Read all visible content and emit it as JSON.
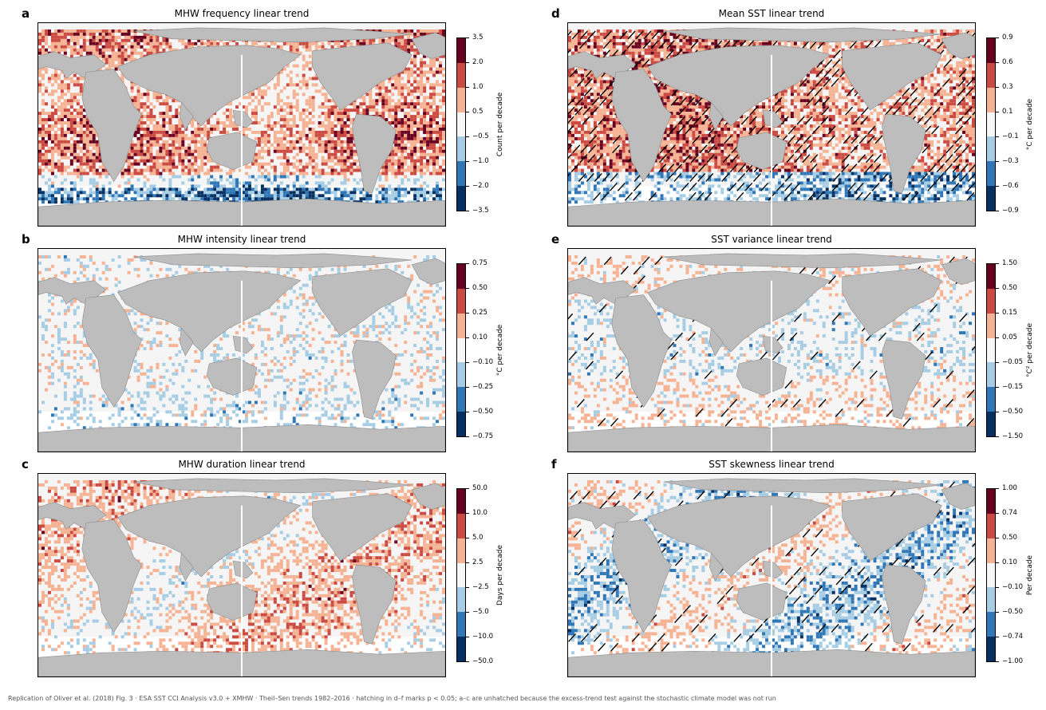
{
  "footer": "Replication of Oliver et al. (2018) Fig. 3 · ESA SST CCI Analysis v3.0 + XMHW · Theil–Sen trends 1982–2016 · hatching in d–f marks p < 0.05; a–c are unhatched because the excess-trend test against the stochastic climate model was not run",
  "palette": [
    "#053061",
    "#2f77b6",
    "#a6cde3",
    "#f7f7f7",
    "#f5b394",
    "#cb4a41",
    "#67001f"
  ],
  "land_color": "#bdbdbd",
  "chart_data": [
    {
      "type": "heatmap",
      "letter": "a",
      "title": "MHW frequency linear trend",
      "colorbar_label": "Count per decade",
      "ticks": [
        "3.5",
        "2.0",
        "1.0",
        "0.5",
        "−0.5",
        "−1.0",
        "−2.0",
        "−3.5"
      ],
      "dominant": "positive (warm)",
      "hatched": false
    },
    {
      "type": "heatmap",
      "letter": "b",
      "title": "MHW intensity linear trend",
      "colorbar_label": "°C per decade",
      "ticks": [
        "0.75",
        "0.50",
        "0.25",
        "0.10",
        "−0.10",
        "−0.25",
        "−0.50",
        "−0.75"
      ],
      "dominant": "mostly near zero",
      "hatched": false
    },
    {
      "type": "heatmap",
      "letter": "c",
      "title": "MHW duration linear trend",
      "colorbar_label": "Days per decade",
      "ticks": [
        "50.0",
        "10.0",
        "5.0",
        "2.5",
        "−2.5",
        "−5.0",
        "−10.0",
        "−50.0"
      ],
      "dominant": "positive (warm)",
      "hatched": false
    },
    {
      "type": "heatmap",
      "letter": "d",
      "title": "Mean SST linear trend",
      "colorbar_label": "°C per decade",
      "ticks": [
        "0.9",
        "0.6",
        "0.3",
        "0.1",
        "−0.1",
        "−0.3",
        "−0.6",
        "−0.9"
      ],
      "dominant": "positive (warm)",
      "hatched": true
    },
    {
      "type": "heatmap",
      "letter": "e",
      "title": "SST variance linear trend",
      "colorbar_label": "°C² per decade",
      "ticks": [
        "1.50",
        "0.50",
        "0.15",
        "0.05",
        "−0.05",
        "−0.15",
        "−0.50",
        "−1.50"
      ],
      "dominant": "mostly near zero",
      "hatched": true
    },
    {
      "type": "heatmap",
      "letter": "f",
      "title": "SST skewness linear trend",
      "colorbar_label": "Per decade",
      "ticks": [
        "1.00",
        "0.74",
        "0.50",
        "0.10",
        "−0.10",
        "−0.50",
        "−0.74",
        "−1.00"
      ],
      "dominant": "mixed",
      "hatched": true
    }
  ]
}
